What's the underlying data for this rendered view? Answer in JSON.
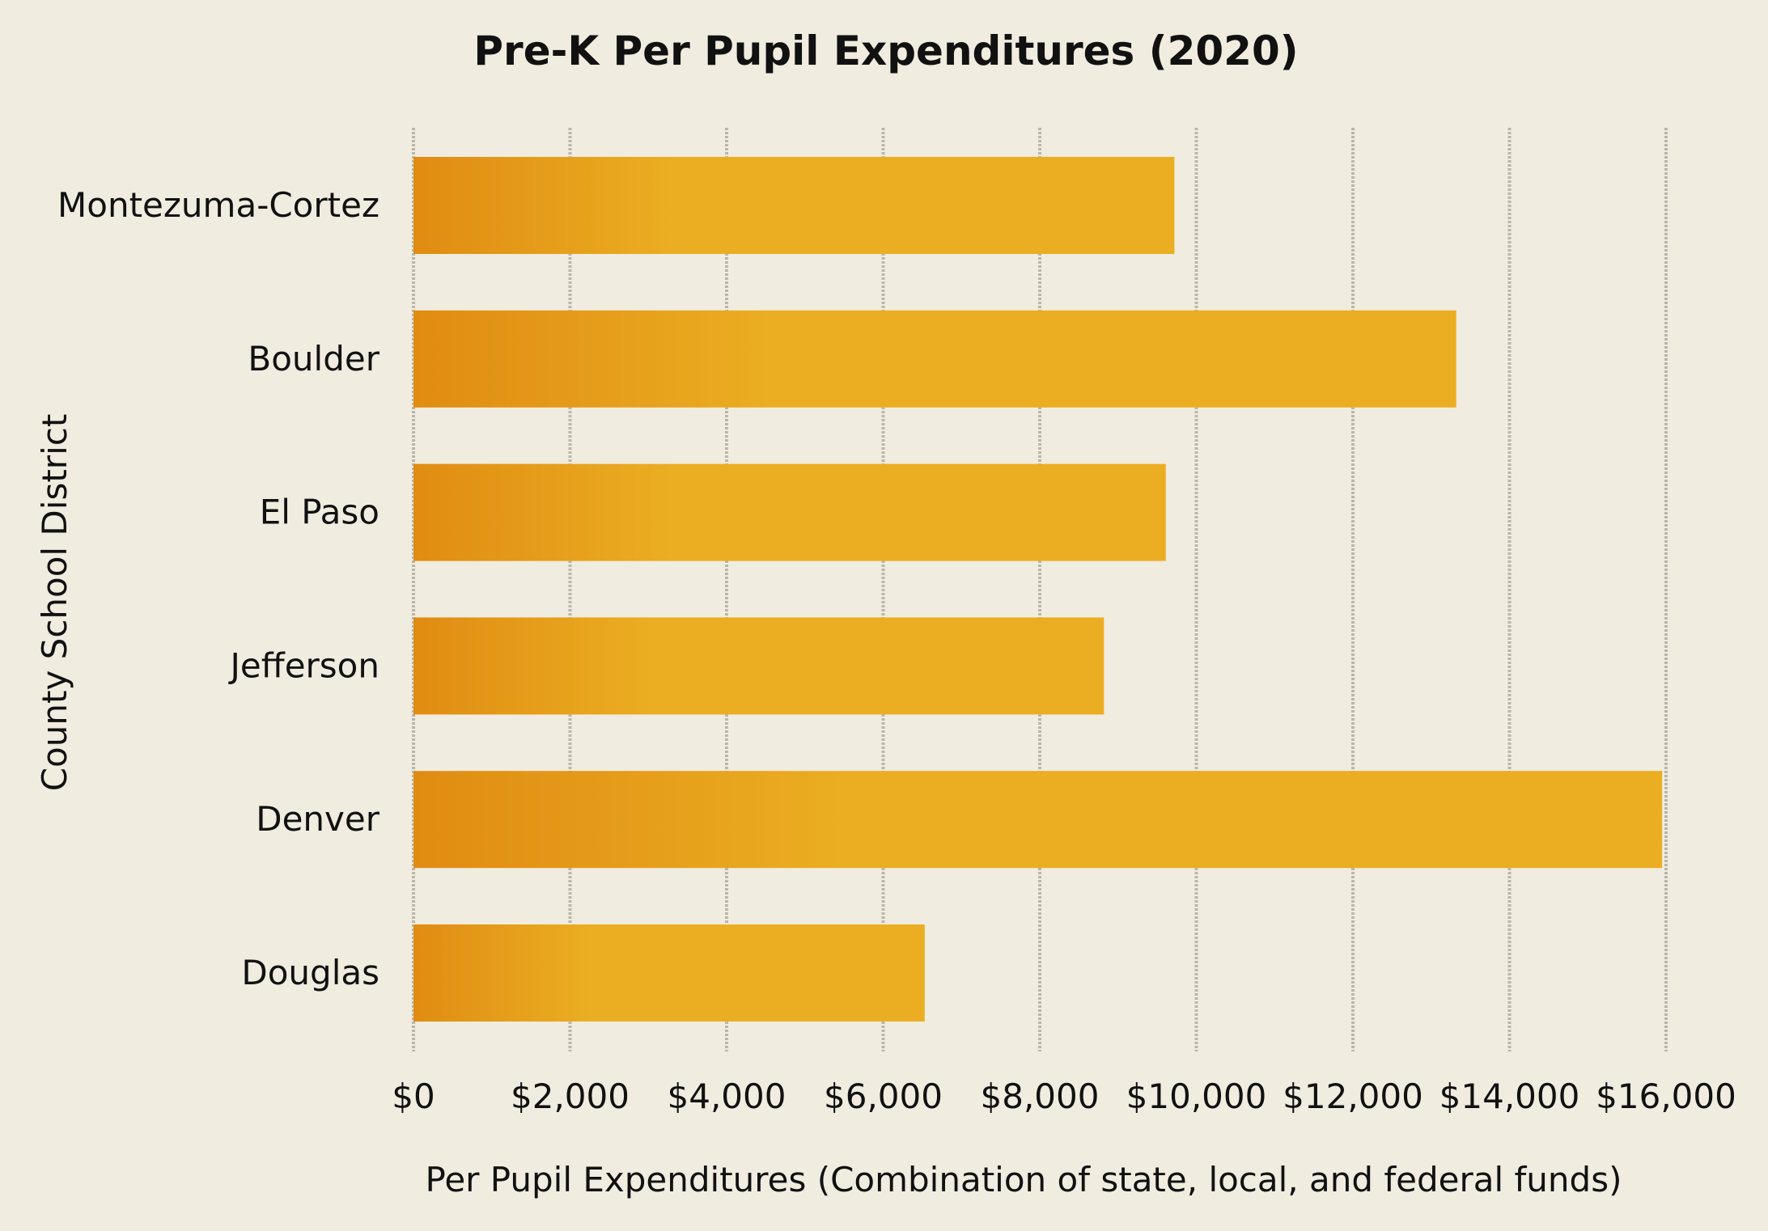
{
  "chart_data": {
    "type": "bar",
    "orientation": "horizontal",
    "title": "Pre-K Per Pupil Expenditures (2020)",
    "xlabel": "Per Pupil Expenditures (Combination of state, local, and federal funds)",
    "ylabel": "County School District",
    "categories": [
      "Montezuma-Cortez",
      "Boulder",
      "El Paso",
      "Jefferson",
      "Denver",
      "Douglas"
    ],
    "values": [
      9720,
      13320,
      9610,
      8820,
      15950,
      6530
    ],
    "xlim": [
      0,
      16000
    ],
    "xticks": [
      0,
      2000,
      4000,
      6000,
      8000,
      10000,
      12000,
      14000,
      16000
    ],
    "xtick_labels": [
      "$0",
      "$2,000",
      "$4,000",
      "$6,000",
      "$8,000",
      "$10,000",
      "$12,000",
      "$14,000",
      "$16,000"
    ],
    "grid": "vertical",
    "legend": "none",
    "colors": {
      "background": "#f0ecdf",
      "bar_start": "#e08c12",
      "bar_end": "#ebae22",
      "grid": "#b9b6ad",
      "text": "#111111"
    }
  }
}
